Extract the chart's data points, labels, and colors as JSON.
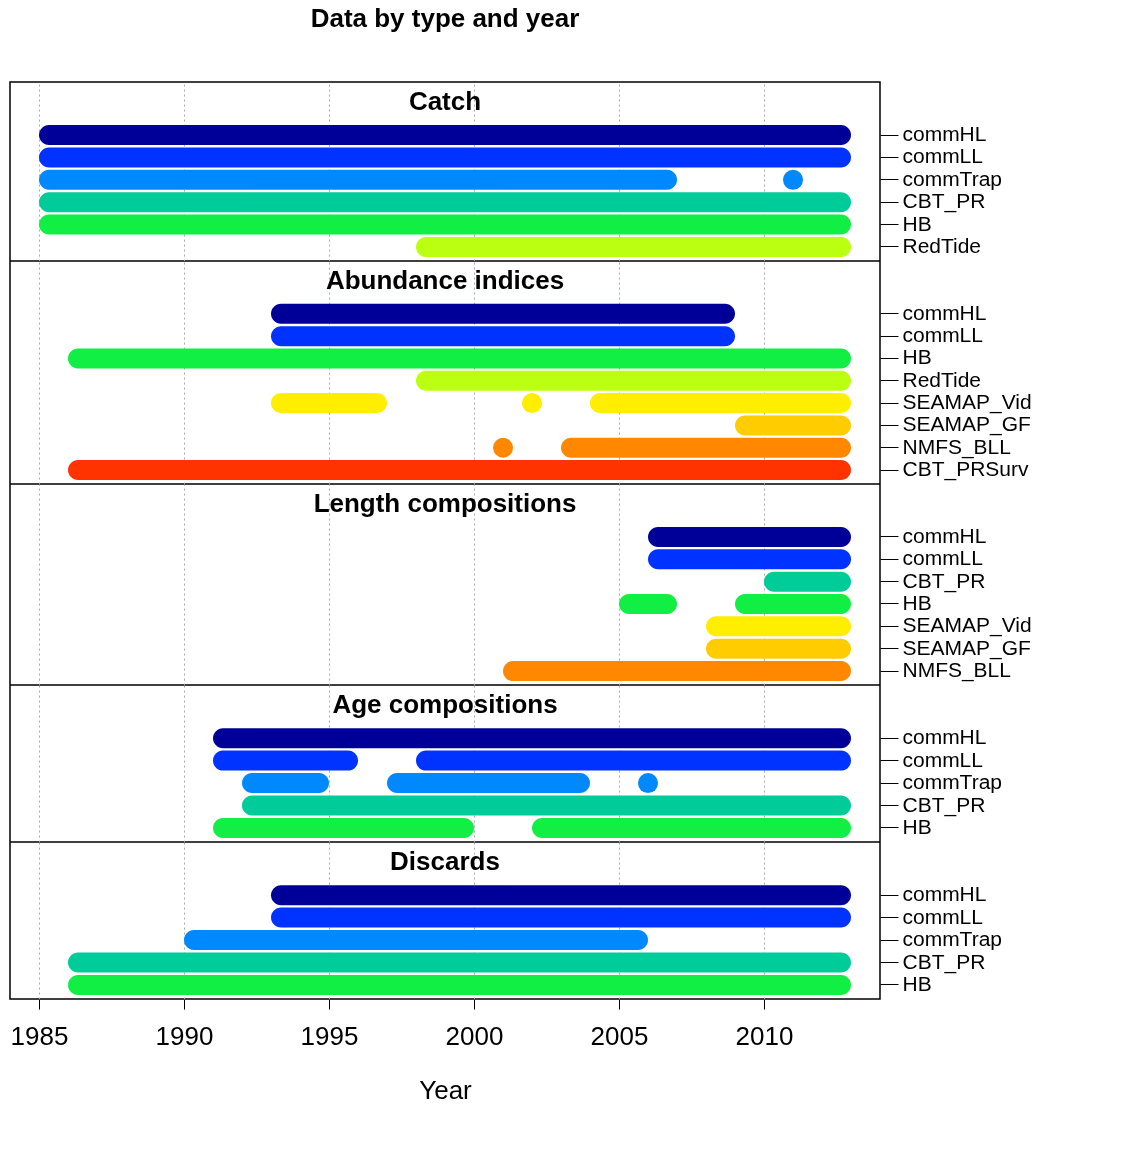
{
  "chart_data": [
    {
      "type": "bar",
      "orientation": "horizontal",
      "title": "Data by type and year",
      "subtitle": "Catch",
      "categories": [
        "commHL",
        "commLL",
        "commTrap",
        "CBT_PR",
        "HB",
        "RedTide"
      ],
      "series": [
        {
          "colors": [
            "#000099",
            "#0033ff",
            "#0088ff",
            "#00cc99",
            "#11ee44",
            "#bbff11"
          ],
          "base": [
            1985,
            1985,
            1985,
            1985,
            1985,
            1998
          ],
          "values": [
            28,
            28,
            22,
            28,
            28,
            15
          ]
        },
        {
          "type": "scatter",
          "colors": [
            null,
            null,
            "#0088ff",
            null,
            null,
            null
          ],
          "values": [
            null,
            null,
            2011,
            null,
            null,
            null
          ]
        }
      ],
      "xlim": [
        1984,
        2014
      ],
      "xticks": [
        1985,
        1990,
        1995,
        2000,
        2005,
        2010
      ],
      "grid": "x",
      "tick_labels": "y"
    },
    {
      "type": "bar",
      "orientation": "horizontal",
      "title": "Abundance indices",
      "categories": [
        "commHL",
        "commLL",
        "HB",
        "RedTide",
        "SEAMAP_Vid",
        "SEAMAP_GF",
        "NMFS_BLL",
        "CBT_PRSurv"
      ],
      "series": [
        {
          "colors": [
            "#000099",
            "#0033ff",
            "#11ee44",
            "#bbff11",
            "#ffee00",
            "#ffcc00",
            null,
            "#ff3300"
          ],
          "base": [
            1993,
            1993,
            1986,
            1998,
            1993,
            2009,
            null,
            1986
          ],
          "values": [
            16,
            16,
            27,
            15,
            4,
            4,
            null,
            27
          ]
        },
        {
          "colors": [
            null,
            null,
            null,
            null,
            "#ffee00",
            null,
            "#ff8800",
            null
          ],
          "base": [
            null,
            null,
            null,
            null,
            2004,
            null,
            2003,
            null
          ],
          "values": [
            null,
            null,
            null,
            null,
            9,
            null,
            10,
            null
          ]
        },
        {
          "type": "scatter",
          "colors": [
            null,
            null,
            null,
            null,
            "#ffee00",
            null,
            "#ff8800",
            null
          ],
          "values": [
            null,
            null,
            null,
            null,
            2002,
            null,
            2001,
            null
          ]
        }
      ],
      "xlim": [
        1984,
        2014
      ],
      "xticks": [
        1985,
        1990,
        1995,
        2000,
        2005,
        2010
      ],
      "grid": "x",
      "tick_labels": "y"
    },
    {
      "type": "bar",
      "orientation": "horizontal",
      "title": "Length compositions",
      "categories": [
        "commHL",
        "commLL",
        "CBT_PR",
        "HB",
        "SEAMAP_Vid",
        "SEAMAP_GF",
        "NMFS_BLL"
      ],
      "series": [
        {
          "colors": [
            "#000099",
            "#0033ff",
            "#00cc99",
            "#11ee44",
            "#ffee00",
            "#ffcc00",
            "#ff8800"
          ],
          "base": [
            2006,
            2006,
            2010,
            2005,
            2008,
            2008,
            2001
          ],
          "values": [
            7,
            7,
            3,
            2,
            5,
            5,
            12
          ]
        },
        {
          "colors": [
            null,
            null,
            null,
            "#11ee44",
            null,
            null,
            null
          ],
          "base": [
            null,
            null,
            null,
            2009,
            null,
            null,
            null
          ],
          "values": [
            null,
            null,
            null,
            4,
            null,
            null,
            null
          ]
        }
      ],
      "xlim": [
        1984,
        2014
      ],
      "xticks": [
        1985,
        1990,
        1995,
        2000,
        2005,
        2010
      ],
      "grid": "x",
      "tick_labels": "y"
    },
    {
      "type": "bar",
      "orientation": "horizontal",
      "title": "Age compositions",
      "categories": [
        "commHL",
        "commLL",
        "commTrap",
        "CBT_PR",
        "HB"
      ],
      "series": [
        {
          "colors": [
            "#000099",
            "#0033ff",
            "#0088ff",
            "#00cc99",
            "#11ee44"
          ],
          "base": [
            1991,
            1991,
            1992,
            1992,
            1991
          ],
          "values": [
            22,
            5,
            3,
            21,
            9
          ]
        },
        {
          "colors": [
            null,
            "#0033ff",
            "#0088ff",
            null,
            "#11ee44"
          ],
          "base": [
            null,
            1998,
            1997,
            null,
            2002
          ],
          "values": [
            null,
            15,
            7,
            null,
            11
          ]
        },
        {
          "type": "scatter",
          "colors": [
            null,
            null,
            "#0088ff",
            null,
            null
          ],
          "values": [
            null,
            null,
            2006,
            null,
            null
          ]
        }
      ],
      "xlim": [
        1984,
        2014
      ],
      "xticks": [
        1985,
        1990,
        1995,
        2000,
        2005,
        2010
      ],
      "grid": "x",
      "tick_labels": "y"
    },
    {
      "type": "bar",
      "orientation": "horizontal",
      "title": "Discards",
      "xlabel": "Year",
      "categories": [
        "commHL",
        "commLL",
        "commTrap",
        "CBT_PR",
        "HB"
      ],
      "series": [
        {
          "colors": [
            "#000099",
            "#0033ff",
            "#0088ff",
            "#00cc99",
            "#11ee44"
          ],
          "base": [
            1993,
            1993,
            1990,
            1986,
            1986
          ],
          "values": [
            20,
            20,
            16,
            27,
            27
          ]
        }
      ],
      "xlim": [
        1984,
        2014
      ],
      "xticks": [
        1985,
        1990,
        1995,
        2000,
        2005,
        2010
      ],
      "grid": "x"
    }
  ]
}
